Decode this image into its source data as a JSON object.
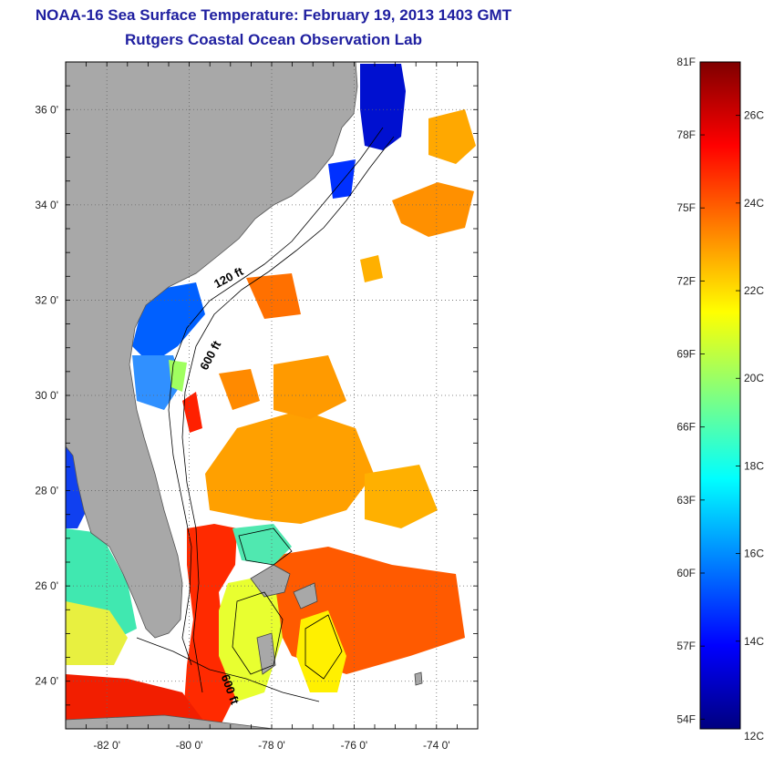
{
  "title": "NOAA-16 Sea Surface Temperature:  February 19, 2013 1403 GMT",
  "subtitle": "Rutgers Coastal Ocean Observation Lab",
  "map": {
    "lon_range": [
      -83.0,
      -73.0
    ],
    "lat_range": [
      23.0,
      37.0
    ],
    "lon_ticks": [
      {
        "value": -82,
        "label": "-82 0'"
      },
      {
        "value": -80,
        "label": "-80 0'"
      },
      {
        "value": -78,
        "label": "-78 0'"
      },
      {
        "value": -76,
        "label": "-76 0'"
      },
      {
        "value": -74,
        "label": "-74 0'"
      }
    ],
    "lat_ticks": [
      {
        "value": 24,
        "label": "24 0'"
      },
      {
        "value": 26,
        "label": "26 0'"
      },
      {
        "value": 28,
        "label": "28 0'"
      },
      {
        "value": 30,
        "label": "30 0'"
      },
      {
        "value": 32,
        "label": "32 0'"
      },
      {
        "value": 34,
        "label": "34 0'"
      },
      {
        "value": 36,
        "label": "36 0'"
      }
    ],
    "grid": "dotted",
    "land_color": "#a8a8a8",
    "cloud_color": "#ffffff",
    "contour_labels": [
      {
        "text": "120 ft",
        "lon": -79.0,
        "lat": 32.4,
        "rotate": -28
      },
      {
        "text": "600 ft",
        "lon": -79.4,
        "lat": 30.8,
        "rotate": -62
      },
      {
        "text": "600 ft",
        "lon": -79.1,
        "lat": 23.8,
        "rotate": 70
      }
    ]
  },
  "colorbar": {
    "vmin_c": 12,
    "vmax_c": 27.22,
    "f_labels": [
      "81F",
      "78F",
      "75F",
      "72F",
      "69F",
      "66F",
      "63F",
      "60F",
      "57F",
      "54F"
    ],
    "f_values": [
      81,
      78,
      75,
      72,
      69,
      66,
      63,
      60,
      57,
      54
    ],
    "c_labels": [
      "26C",
      "24C",
      "22C",
      "20C",
      "18C",
      "16C",
      "14C",
      "12C"
    ],
    "c_values": [
      26,
      24,
      22,
      20,
      18,
      16,
      14,
      12
    ],
    "colors": [
      "#00007f",
      "#0000ff",
      "#0080ff",
      "#00ffff",
      "#80ff80",
      "#ffff00",
      "#ff8000",
      "#ff0000",
      "#7f0000"
    ]
  }
}
